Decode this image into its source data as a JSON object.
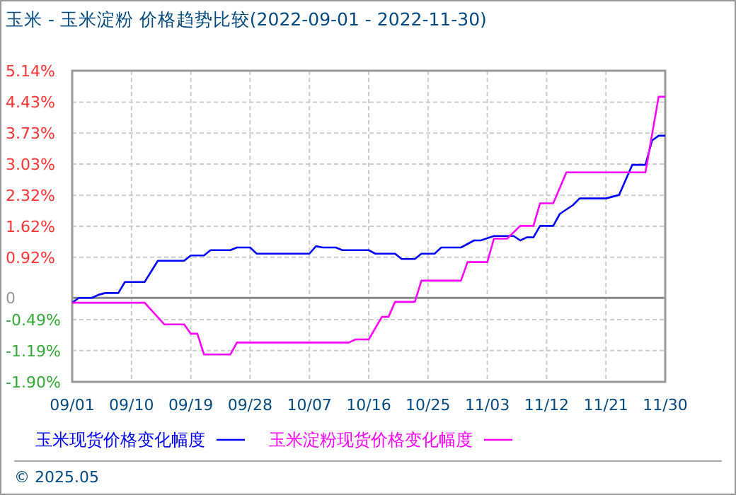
{
  "chart_data": {
    "type": "line",
    "title": "玉米 - 玉米淀粉 价格趋势比较(2022-09-01 - 2022-11-30)",
    "annotations": [
      "© 2025.05"
    ],
    "xlim": [
      "2022-09-01",
      "2022-11-30"
    ],
    "xticks": [
      {
        "value": "2022-09-01",
        "label": "09/01"
      },
      {
        "value": "2022-09-10",
        "label": "09/10"
      },
      {
        "value": "2022-09-19",
        "label": "09/19"
      },
      {
        "value": "2022-09-28",
        "label": "09/28"
      },
      {
        "value": "2022-10-07",
        "label": "10/07"
      },
      {
        "value": "2022-10-16",
        "label": "10/16"
      },
      {
        "value": "2022-10-25",
        "label": "10/25"
      },
      {
        "value": "2022-11-03",
        "label": "11/03"
      },
      {
        "value": "2022-11-12",
        "label": "11/12"
      },
      {
        "value": "2022-11-21",
        "label": "11/21"
      },
      {
        "value": "2022-11-30",
        "label": "11/30"
      }
    ],
    "ylim": [
      -1.9,
      5.14
    ],
    "yticks": [
      {
        "value": -1.9,
        "label": "-1.90%"
      },
      {
        "value": -1.19,
        "label": "-1.19%"
      },
      {
        "value": -0.49,
        "label": "-0.49%"
      },
      0,
      {
        "value": 0.92,
        "label": "0.92%"
      },
      {
        "value": 1.62,
        "label": "1.62%"
      },
      {
        "value": 2.32,
        "label": "2.32%"
      },
      {
        "value": 3.03,
        "label": "3.03%"
      },
      {
        "value": 3.73,
        "label": "3.73%"
      },
      {
        "value": 4.43,
        "label": "4.43%"
      },
      {
        "value": 5.14,
        "label": "5.14%"
      }
    ],
    "grid": true,
    "legend": "bottom",
    "series": [
      {
        "name": "玉米现货价格变化幅度",
        "color": "#0000ff",
        "x": [
          "2022-09-01",
          "2022-09-02",
          "2022-09-04",
          "2022-09-05",
          "2022-09-06",
          "2022-09-08",
          "2022-09-09",
          "2022-09-12",
          "2022-09-14",
          "2022-09-18",
          "2022-09-19",
          "2022-09-21",
          "2022-09-22",
          "2022-09-25",
          "2022-09-26",
          "2022-09-28",
          "2022-09-29",
          "2022-10-07",
          "2022-10-08",
          "2022-10-09",
          "2022-10-11",
          "2022-10-12",
          "2022-10-16",
          "2022-10-17",
          "2022-10-20",
          "2022-10-21",
          "2022-10-23",
          "2022-10-24",
          "2022-10-26",
          "2022-10-27",
          "2022-10-30",
          "2022-11-01",
          "2022-11-02",
          "2022-11-04",
          "2022-11-07",
          "2022-11-08",
          "2022-11-09",
          "2022-11-10",
          "2022-11-11",
          "2022-11-13",
          "2022-11-14",
          "2022-11-16",
          "2022-11-17",
          "2022-11-21",
          "2022-11-23",
          "2022-11-25",
          "2022-11-27",
          "2022-11-28",
          "2022-11-29",
          "2022-11-30"
        ],
        "values": [
          -0.11,
          0.0,
          0.0,
          0.07,
          0.11,
          0.11,
          0.36,
          0.36,
          0.84,
          0.84,
          0.96,
          0.96,
          1.08,
          1.08,
          1.14,
          1.14,
          1.0,
          1.0,
          1.17,
          1.14,
          1.14,
          1.08,
          1.08,
          1.0,
          1.0,
          0.88,
          0.88,
          1.0,
          1.0,
          1.14,
          1.14,
          1.3,
          1.3,
          1.4,
          1.4,
          1.3,
          1.37,
          1.37,
          1.63,
          1.63,
          1.9,
          2.1,
          2.25,
          2.25,
          2.33,
          3.01,
          3.01,
          3.56,
          3.67,
          3.67
        ]
      },
      {
        "name": "玉米淀粉现货价格变化幅度",
        "color": "#ff00ff",
        "x": [
          "2022-09-01",
          "2022-09-12",
          "2022-09-15",
          "2022-09-18",
          "2022-09-19",
          "2022-09-20",
          "2022-09-21",
          "2022-09-25",
          "2022-09-26",
          "2022-10-13",
          "2022-10-14",
          "2022-10-16",
          "2022-10-18",
          "2022-10-19",
          "2022-10-20",
          "2022-10-23",
          "2022-10-24",
          "2022-10-30",
          "2022-10-31",
          "2022-11-03",
          "2022-11-04",
          "2022-11-06",
          "2022-11-08",
          "2022-11-10",
          "2022-11-11",
          "2022-11-13",
          "2022-11-15",
          "2022-11-27",
          "2022-11-29",
          "2022-11-30"
        ],
        "values": [
          -0.11,
          -0.11,
          -0.6,
          -0.6,
          -0.81,
          -0.81,
          -1.28,
          -1.28,
          -1.01,
          -1.01,
          -0.94,
          -0.94,
          -0.43,
          -0.43,
          -0.09,
          -0.09,
          0.39,
          0.39,
          0.81,
          0.81,
          1.34,
          1.34,
          1.63,
          1.63,
          2.14,
          2.14,
          2.84,
          2.84,
          4.55,
          4.55
        ]
      }
    ]
  }
}
